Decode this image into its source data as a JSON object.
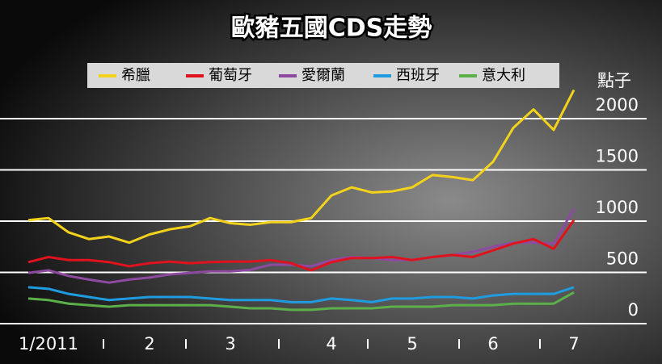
{
  "chart_data": {
    "type": "line",
    "title": "歐豬五國CDS走勢",
    "y_label": "點子",
    "categories": [
      null,
      "1/2011",
      null,
      null,
      null,
      null,
      "2",
      null,
      null,
      null,
      "3",
      null,
      null,
      null,
      null,
      "4",
      null,
      null,
      null,
      "5",
      null,
      null,
      null,
      "6",
      null,
      null,
      null,
      "7"
    ],
    "series": [
      {
        "name": "希臘",
        "color": "#f2d21b",
        "values": [
          1010,
          1030,
          890,
          825,
          850,
          790,
          870,
          920,
          950,
          1030,
          980,
          965,
          990,
          990,
          1030,
          1250,
          1330,
          1280,
          1290,
          1330,
          1450,
          1430,
          1400,
          1580,
          1910,
          2090,
          1890,
          2280
        ]
      },
      {
        "name": "葡萄牙",
        "color": "#e0121e",
        "values": [
          600,
          650,
          620,
          620,
          600,
          560,
          590,
          605,
          590,
          600,
          605,
          605,
          620,
          590,
          520,
          600,
          640,
          640,
          650,
          620,
          650,
          670,
          650,
          715,
          780,
          825,
          730,
          1010
        ]
      },
      {
        "name": "愛爾蘭",
        "color": "#8e4aa0",
        "values": [
          495,
          520,
          465,
          430,
          400,
          430,
          450,
          480,
          495,
          510,
          510,
          525,
          575,
          575,
          560,
          620,
          650,
          640,
          620,
          620,
          650,
          670,
          700,
          750,
          790,
          790,
          780,
          1120
        ]
      },
      {
        "name": "西班牙",
        "color": "#1f9ce0",
        "values": [
          355,
          340,
          290,
          260,
          230,
          245,
          260,
          260,
          260,
          245,
          230,
          230,
          230,
          210,
          210,
          245,
          230,
          210,
          245,
          245,
          260,
          260,
          245,
          275,
          290,
          290,
          290,
          355
        ]
      },
      {
        "name": "意大利",
        "color": "#5cb04a",
        "values": [
          245,
          230,
          195,
          180,
          165,
          180,
          180,
          180,
          180,
          180,
          165,
          150,
          150,
          135,
          135,
          150,
          150,
          150,
          165,
          165,
          165,
          180,
          180,
          180,
          195,
          195,
          195,
          305
        ]
      }
    ],
    "ylim": [
      0,
      2000
    ],
    "yticks": [
      0,
      500,
      1000,
      1500,
      2000
    ],
    "grid": true
  }
}
